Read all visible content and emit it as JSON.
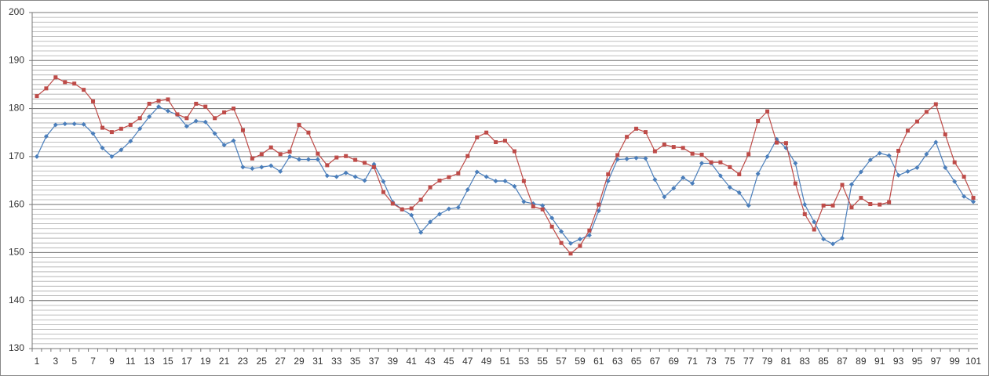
{
  "chart_data": {
    "type": "line",
    "categories": [
      "1",
      null,
      "3",
      null,
      "5",
      null,
      "7",
      null,
      "9",
      null,
      "11",
      null,
      "13",
      null,
      "15",
      null,
      "17",
      null,
      "19",
      null,
      "21",
      null,
      "23",
      null,
      "25",
      null,
      "27",
      null,
      "29",
      null,
      "31",
      null,
      "33",
      null,
      "35",
      null,
      "37",
      null,
      "39",
      null,
      "41",
      null,
      "43",
      null,
      "45",
      null,
      "47",
      null,
      "49",
      null,
      "51",
      null,
      "53",
      null,
      "55",
      null,
      "57",
      null,
      "59",
      null,
      "61",
      null,
      "63",
      null,
      "65",
      null,
      "67",
      null,
      "69",
      null,
      "71",
      null,
      "73",
      null,
      "75",
      null,
      "77",
      null,
      "79",
      null,
      "81",
      null,
      "83",
      null,
      "85",
      null,
      "87",
      null,
      "89",
      null,
      "91",
      null,
      "93",
      null,
      "95",
      null,
      "97",
      null,
      "99",
      null,
      "101"
    ],
    "series": [
      {
        "color": "#4a7ebb",
        "marker": "diamond",
        "values": [
          170.0,
          174.2,
          176.6,
          176.8,
          176.8,
          176.7,
          174.8,
          171.8,
          170.0,
          171.4,
          173.2,
          175.8,
          178.3,
          180.4,
          179.5,
          178.7,
          176.3,
          177.4,
          177.2,
          174.8,
          172.4,
          173.3,
          167.8,
          167.5,
          167.8,
          168.1,
          166.9,
          170.0,
          169.4,
          169.4,
          169.4,
          166.0,
          165.8,
          166.6,
          165.8,
          165.0,
          168.4,
          164.8,
          160.5,
          159.0,
          157.8,
          154.2,
          156.4,
          158.0,
          159.1,
          159.4,
          163.1,
          166.8,
          165.8,
          164.9,
          164.9,
          163.8,
          160.6,
          160.2,
          159.8,
          157.2,
          154.4,
          151.9,
          152.8,
          153.6,
          158.7,
          164.9,
          169.4,
          169.5,
          169.7,
          169.6,
          165.2,
          161.6,
          163.4,
          165.6,
          164.4,
          168.6,
          168.6,
          166.0,
          163.6,
          162.5,
          159.8,
          166.4,
          170.0,
          173.6,
          171.8,
          168.6,
          160.0,
          156.4,
          152.8,
          151.8,
          153.0,
          164.2,
          166.8,
          169.3,
          170.7,
          170.2,
          166.1,
          166.9,
          167.7,
          170.5,
          173.0,
          167.7,
          164.8,
          161.7,
          160.6
        ]
      },
      {
        "color": "#be4b48",
        "marker": "square",
        "values": [
          182.6,
          184.2,
          186.5,
          185.5,
          185.2,
          183.9,
          181.5,
          176.0,
          175.1,
          175.8,
          176.6,
          178.0,
          181.0,
          181.6,
          181.9,
          178.8,
          178.0,
          181.0,
          180.4,
          178.0,
          179.2,
          180.0,
          175.5,
          169.6,
          170.5,
          171.9,
          170.5,
          171.0,
          176.6,
          175.0,
          170.6,
          168.2,
          169.8,
          170.1,
          169.3,
          168.7,
          167.8,
          162.6,
          160.2,
          159.0,
          159.2,
          161.0,
          163.6,
          165.0,
          165.7,
          166.5,
          170.1,
          174.0,
          175.0,
          173.0,
          173.3,
          171.1,
          164.9,
          159.6,
          159.0,
          155.4,
          152.0,
          149.8,
          151.4,
          154.6,
          160.0,
          166.3,
          170.3,
          174.1,
          175.8,
          175.1,
          171.1,
          172.5,
          172.0,
          171.8,
          170.6,
          170.4,
          168.8,
          168.8,
          167.8,
          166.3,
          170.5,
          177.4,
          179.4,
          172.9,
          172.8,
          164.4,
          158.0,
          154.8,
          159.8,
          159.8,
          164.1,
          159.4,
          161.4,
          160.1,
          160.0,
          160.5,
          171.2,
          175.4,
          177.3,
          179.3,
          180.9,
          174.6,
          168.8,
          165.8,
          161.4
        ]
      }
    ],
    "ylim": [
      130,
      200
    ],
    "yticks": [
      130,
      140,
      150,
      160,
      170,
      180,
      190,
      200
    ],
    "yminor_step": 1,
    "grid": true
  }
}
